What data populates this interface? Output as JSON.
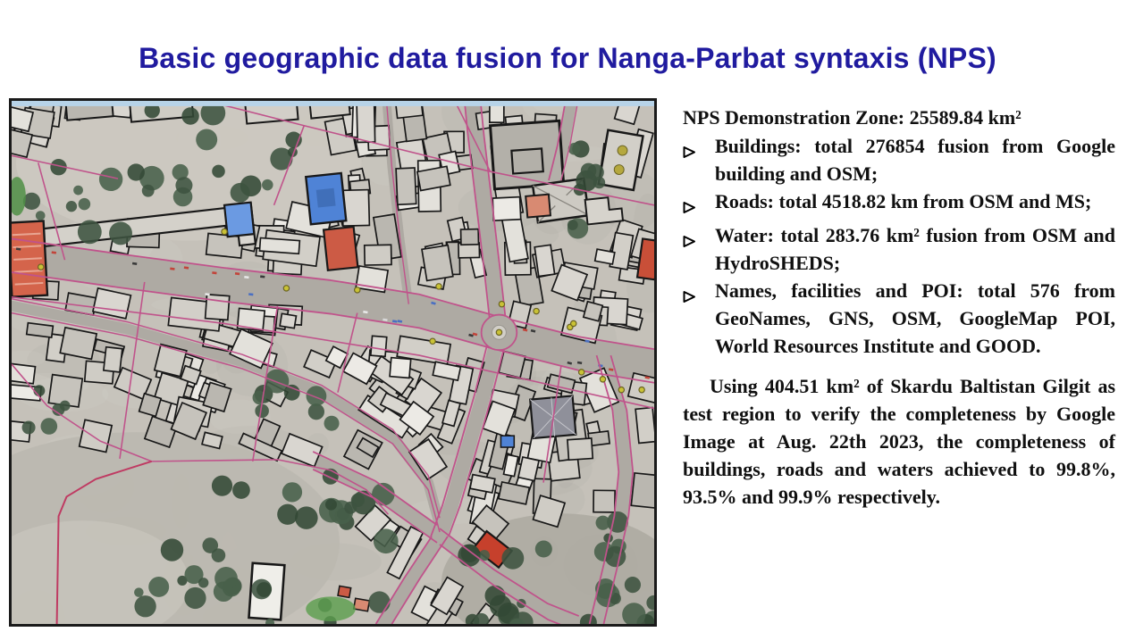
{
  "slide": {
    "title": "Basic geographic data fusion for Nanga-Parbat syntaxis (NPS)"
  },
  "theme": {
    "title_color": "#201b9f",
    "text_color": "#101010",
    "background": "#ffffff"
  },
  "stats": {
    "heading": "NPS Demonstration Zone: 25589.84 km²",
    "bullet_marker": "➢",
    "bullets": [
      "Buildings: total 276854 fusion from Google building and OSM;",
      "Roads: total 4518.82 km from OSM and MS;",
      "Water: total 283.76 km² fusion from OSM and HydroSHEDS;",
      "Names, facilities and POI: total 576 from GeoNames, GNS, OSM, GoogleMap POI, World Resources Institute and GOOD."
    ],
    "paragraph": "Using 404.51 km² of Skardu Baltistan Gilgit as test region to verify the completeness by Google Image at Aug. 22th 2023, the completeness of buildings, roads and waters achieved to 99.8%, 93.5% and 99.9% respectively."
  },
  "map": {
    "description": "Satellite image of Skardu town with fused building footprints (black outlines), road network (pink lines), a roundabout and yellow POI markers",
    "palette": {
      "ground": "#c5c1b9",
      "ground_light": "#ccc8c0",
      "ground_dark": "#bcb8b0",
      "road": "#aeaaa3",
      "lane": "#b9b5ae",
      "building_stroke": "#181818",
      "pink_line": "#c0538b",
      "red_line": "#bf3a62",
      "tree_dark": "#3d5340",
      "tree_mid": "#48604a",
      "tree_deep": "#334936",
      "grass": "#5a9e4c",
      "poi_fill": "#c9c236",
      "poi_ring": "#6b6424",
      "blue_roof": "#4f83d6",
      "blue_roof_light": "#6b9ae2",
      "red_roof": "#cc5b45",
      "red_roof_dark": "#c6402c",
      "salmon_roof": "#d88a72",
      "sky_strip": "#b7d3e8",
      "plaza": "#8f909a",
      "border": "#1a1a1a"
    }
  }
}
